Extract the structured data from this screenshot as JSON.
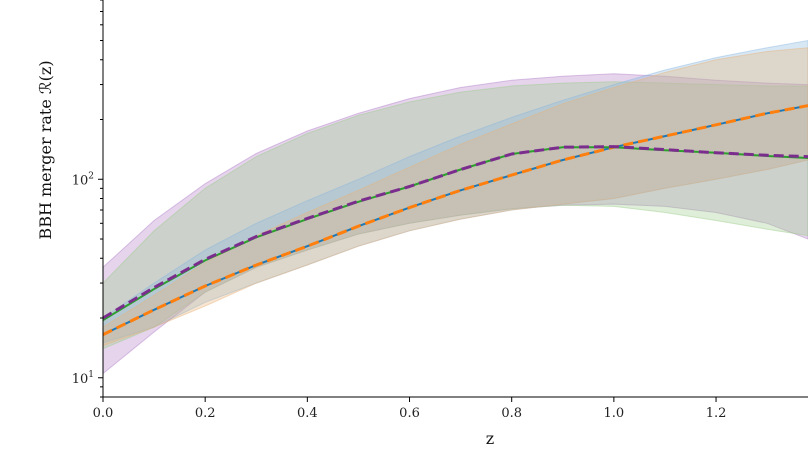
{
  "chart_data": {
    "type": "line",
    "xlabel": "z",
    "ylabel": "BBH merger rate ℛ(z)",
    "yscale": "log",
    "xlim": [
      0.0,
      1.38
    ],
    "ylim": [
      8.0,
      800.0
    ],
    "x_ticks": [
      {
        "value": 0.0,
        "label": "0.0"
      },
      {
        "value": 0.2,
        "label": "0.2"
      },
      {
        "value": 0.4,
        "label": "0.4"
      },
      {
        "value": 0.6,
        "label": "0.6"
      },
      {
        "value": 0.8,
        "label": "0.8"
      },
      {
        "value": 1.0,
        "label": "1.0"
      },
      {
        "value": 1.2,
        "label": "1.2"
      }
    ],
    "y_major_ticks": [
      {
        "value": 10,
        "base": "10",
        "exp": "1"
      },
      {
        "value": 100,
        "base": "10",
        "exp": "2"
      }
    ],
    "grid": false,
    "x": [
      0.0,
      0.1,
      0.2,
      0.3,
      0.4,
      0.5,
      0.6,
      0.7,
      0.8,
      0.9,
      1.0,
      1.1,
      1.2,
      1.3,
      1.38
    ],
    "series": [
      {
        "color": "#1f77b4",
        "style": "solid",
        "values": [
          16.5,
          22,
          29,
          37,
          46,
          58,
          72,
          88,
          105,
          125,
          145,
          165,
          188,
          215,
          235
        ]
      },
      {
        "color": "#ff7f0e",
        "style": "dashed",
        "values": [
          16.5,
          22,
          29,
          37,
          46,
          58,
          72,
          88,
          105,
          125,
          145,
          165,
          188,
          215,
          235
        ]
      },
      {
        "color": "#2ca02c",
        "style": "solid",
        "values": [
          19.5,
          28,
          39,
          51,
          63,
          77,
          92,
          112,
          134,
          145,
          145,
          140,
          136,
          131,
          128
        ]
      },
      {
        "color": "#7b2d8e",
        "style": "dashed",
        "values": [
          20,
          28.5,
          39.5,
          51.5,
          63.5,
          77.5,
          92,
          112,
          134,
          145,
          146,
          141,
          136,
          132,
          130
        ]
      }
    ],
    "bands": [
      {
        "color": "#b07cc6",
        "lower": [
          10.5,
          17,
          27,
          36,
          44,
          53,
          60,
          66,
          71,
          74,
          75,
          73,
          68,
          60,
          50
        ],
        "upper": [
          36,
          62,
          95,
          135,
          175,
          215,
          255,
          290,
          315,
          330,
          340,
          330,
          315,
          305,
          300
        ]
      },
      {
        "color": "#9ccc8a",
        "lower": [
          14,
          18,
          27,
          36,
          44,
          53,
          60,
          66,
          71,
          74,
          73,
          68,
          62,
          56,
          52
        ],
        "upper": [
          30,
          55,
          90,
          130,
          170,
          210,
          245,
          275,
          295,
          305,
          310,
          305,
          300,
          295,
          295
        ]
      },
      {
        "color": "#8ab6dd",
        "lower": [
          15,
          18,
          24,
          30,
          37,
          46,
          55,
          63,
          70,
          75,
          80,
          90,
          100,
          112,
          125
        ],
        "upper": [
          20,
          30,
          44,
          60,
          78,
          100,
          130,
          165,
          205,
          250,
          300,
          355,
          410,
          460,
          500
        ]
      },
      {
        "color": "#e8b47a",
        "lower": [
          14.5,
          18,
          23,
          30,
          37,
          46,
          55,
          63,
          70,
          75,
          80,
          90,
          100,
          112,
          125
        ],
        "upper": [
          18,
          26,
          38,
          52,
          68,
          88,
          115,
          150,
          190,
          240,
          290,
          345,
          400,
          440,
          460
        ]
      }
    ]
  }
}
